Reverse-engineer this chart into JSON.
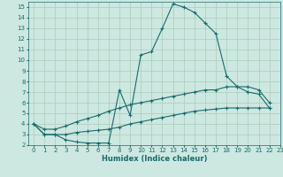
{
  "xlabel": "Humidex (Indice chaleur)",
  "bg_color": "#cce8e0",
  "grid_color": "#aaccbb",
  "line_color": "#1a6b6b",
  "xlim": [
    -0.5,
    23
  ],
  "ylim": [
    2,
    15.5
  ],
  "yticks": [
    2,
    3,
    4,
    5,
    6,
    7,
    8,
    9,
    10,
    11,
    12,
    13,
    14,
    15
  ],
  "xticks": [
    0,
    1,
    2,
    3,
    4,
    5,
    6,
    7,
    8,
    9,
    10,
    11,
    12,
    13,
    14,
    15,
    16,
    17,
    18,
    19,
    20,
    21,
    22,
    23
  ],
  "series": [
    {
      "x": [
        0,
        1,
        2,
        3,
        4,
        5,
        6,
        7,
        8,
        9,
        10,
        11,
        12,
        13,
        14,
        15,
        16,
        17,
        18,
        19,
        20,
        21,
        22
      ],
      "y": [
        4.0,
        3.0,
        3.0,
        2.5,
        2.3,
        2.2,
        2.2,
        2.2,
        7.2,
        4.8,
        10.5,
        10.8,
        13.0,
        15.3,
        15.0,
        14.5,
        13.5,
        12.5,
        8.5,
        7.5,
        7.0,
        6.8,
        5.5
      ]
    },
    {
      "x": [
        0,
        1,
        2,
        3,
        4,
        5,
        6,
        7,
        8,
        9,
        10,
        11,
        12,
        13,
        14,
        15,
        16,
        17,
        18,
        19,
        20,
        21,
        22
      ],
      "y": [
        4.0,
        3.5,
        3.5,
        3.8,
        4.2,
        4.5,
        4.8,
        5.2,
        5.5,
        5.8,
        6.0,
        6.2,
        6.4,
        6.6,
        6.8,
        7.0,
        7.2,
        7.2,
        7.5,
        7.5,
        7.5,
        7.2,
        6.0
      ]
    },
    {
      "x": [
        0,
        1,
        2,
        3,
        4,
        5,
        6,
        7,
        8,
        9,
        10,
        11,
        12,
        13,
        14,
        15,
        16,
        17,
        18,
        19,
        20,
        21,
        22
      ],
      "y": [
        4.0,
        3.0,
        3.0,
        3.0,
        3.2,
        3.3,
        3.4,
        3.5,
        3.7,
        4.0,
        4.2,
        4.4,
        4.6,
        4.8,
        5.0,
        5.2,
        5.3,
        5.4,
        5.5,
        5.5,
        5.5,
        5.5,
        5.5
      ]
    }
  ]
}
